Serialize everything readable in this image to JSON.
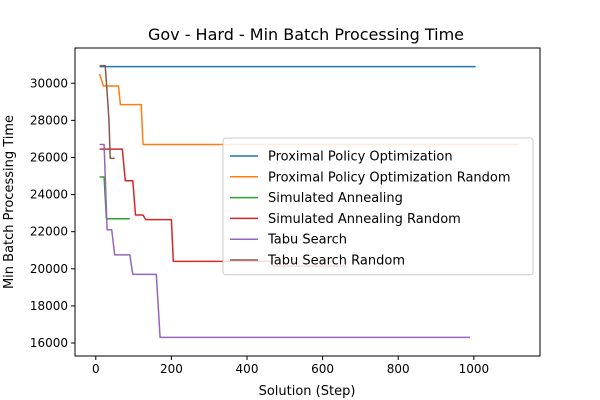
{
  "chart_data": {
    "type": "line",
    "title": "Gov - Hard - Min Batch Processing Time",
    "xlabel": "Solution (Step)",
    "ylabel": "Min Batch Processing Time",
    "xlim": [
      -55,
      1175
    ],
    "ylim": [
      15300,
      31900
    ],
    "xticks": [
      0,
      200,
      400,
      600,
      800,
      1000
    ],
    "yticks": [
      16000,
      18000,
      20000,
      22000,
      24000,
      26000,
      28000,
      30000
    ],
    "grid": false,
    "legend_position": "center-right",
    "series": [
      {
        "name": "Proximal Policy Optimization",
        "color": "#1f77b4",
        "points": [
          [
            10,
            30900
          ],
          [
            1005,
            30900
          ]
        ]
      },
      {
        "name": "Proximal Policy Optimization Random",
        "color": "#ff7f0e",
        "points": [
          [
            10,
            30500
          ],
          [
            20,
            29850
          ],
          [
            35,
            29850
          ],
          [
            60,
            29850
          ],
          [
            65,
            28850
          ],
          [
            100,
            28850
          ],
          [
            120,
            28850
          ],
          [
            125,
            26700
          ],
          [
            250,
            26700
          ],
          [
            500,
            26700
          ],
          [
            1120,
            26700
          ]
        ]
      },
      {
        "name": "Simulated Annealing",
        "color": "#2ca02c",
        "points": [
          [
            10,
            24950
          ],
          [
            22,
            24950
          ],
          [
            28,
            22700
          ],
          [
            90,
            22700
          ]
        ]
      },
      {
        "name": "Simulated Annealing Random",
        "color": "#d62728",
        "points": [
          [
            10,
            26450
          ],
          [
            40,
            26450
          ],
          [
            70,
            26450
          ],
          [
            78,
            24750
          ],
          [
            98,
            24750
          ],
          [
            105,
            22900
          ],
          [
            125,
            22900
          ],
          [
            132,
            22650
          ],
          [
            155,
            22650
          ],
          [
            200,
            22650
          ],
          [
            205,
            20400
          ],
          [
            300,
            20400
          ],
          [
            460,
            20400
          ],
          [
            470,
            20150
          ],
          [
            660,
            20150
          ]
        ]
      },
      {
        "name": "Tabu Search",
        "color": "#9467bd",
        "points": [
          [
            10,
            26700
          ],
          [
            22,
            26700
          ],
          [
            30,
            22100
          ],
          [
            42,
            22100
          ],
          [
            50,
            20750
          ],
          [
            90,
            20750
          ],
          [
            98,
            19700
          ],
          [
            125,
            19700
          ],
          [
            160,
            19700
          ],
          [
            170,
            16300
          ],
          [
            400,
            16300
          ],
          [
            990,
            16300
          ]
        ]
      },
      {
        "name": "Tabu Search Random",
        "color": "#8c564b",
        "points": [
          [
            10,
            30950
          ],
          [
            20,
            30950
          ],
          [
            25,
            30950
          ],
          [
            32,
            28900
          ],
          [
            35,
            27950
          ],
          [
            38,
            25950
          ],
          [
            50,
            25950
          ]
        ]
      }
    ]
  }
}
